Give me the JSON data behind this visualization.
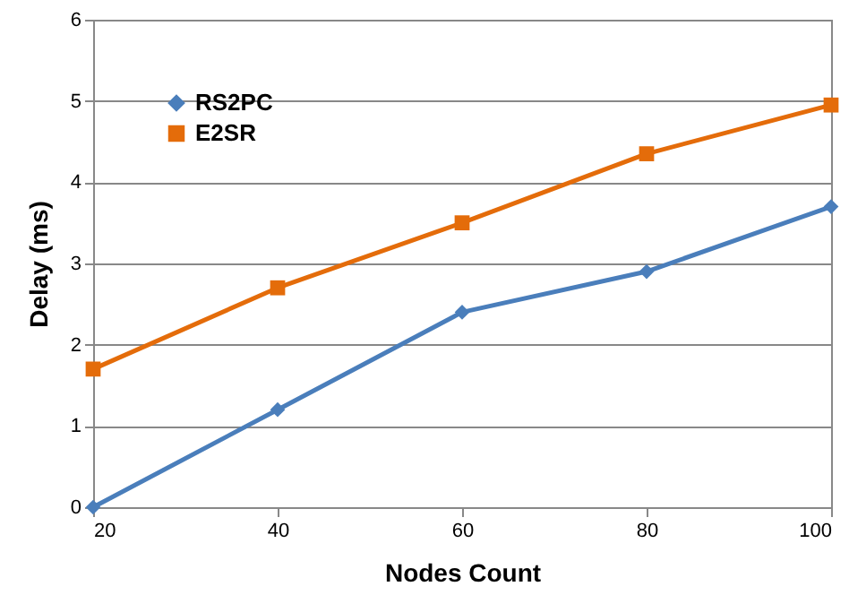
{
  "chart_data": {
    "type": "line",
    "xlabel": "Nodes Count",
    "ylabel": "Delay (ms)",
    "x": [
      20,
      40,
      60,
      80,
      100
    ],
    "series": [
      {
        "name": "RS2PC",
        "color": "#4a7ebb",
        "marker": "diamond",
        "values": [
          0,
          1.2,
          2.4,
          2.9,
          3.7
        ]
      },
      {
        "name": "E2SR",
        "color": "#e46c0a",
        "marker": "square",
        "values": [
          1.7,
          2.7,
          3.5,
          4.35,
          4.95
        ]
      }
    ],
    "xlim": [
      20,
      100
    ],
    "xticks": [
      20,
      40,
      60,
      80,
      100
    ],
    "ylim": [
      0,
      6
    ],
    "yticks": [
      0,
      1,
      2,
      3,
      4,
      5,
      6
    ],
    "grid": "y",
    "legend": "top left",
    "line_style": "solid"
  }
}
